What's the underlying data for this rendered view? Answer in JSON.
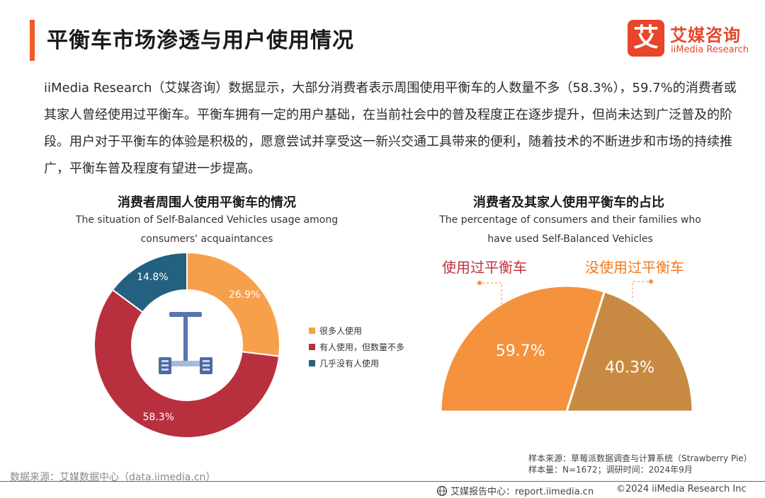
{
  "header": {
    "title": "平衡车市场渗透与用户使用情况",
    "logo_mark": "艾",
    "logo_cn": "艾媒咨询",
    "logo_en": "iiMedia Research"
  },
  "body_text": "iiMedia Research（艾媒咨询）数据显示，大部分消费者表示周围使用平衡车的人数量不多（58.3%），59.7%的消费者或其家人曾经使用过平衡车。平衡车拥有一定的用户基础，在当前社会中的普及程度正在逐步提升，但尚未达到广泛普及的阶段。用户对于平衡车的体验是积极的，愿意尝试并享受这一新兴交通工具带来的便利，随着技术的不断进步和市场的持续推广，平衡车普及程度有望进一步提高。",
  "chart_data": [
    {
      "type": "pie",
      "title": "消费者周围人使用平衡车的情况",
      "subtitle": "The situation of Self-Balanced Vehicles usage among consumers' acquaintances",
      "categories": [
        "很多人使用",
        "有人使用，但数量不多",
        "几乎没有人使用"
      ],
      "values": [
        26.9,
        58.3,
        14.8
      ],
      "data_labels": [
        "26.9%",
        "58.3%",
        "14.8%"
      ],
      "colors": [
        "#f7a04b",
        "#b8303e",
        "#24607f"
      ],
      "legend_position": "right"
    },
    {
      "type": "pie",
      "title": "消费者及其家人使用平衡车的占比",
      "subtitle": "The percentage of consumers and their families who have used Self-Balanced Vehicles",
      "categories": [
        "使用过平衡车",
        "没使用过平衡车"
      ],
      "values": [
        59.7,
        40.3
      ],
      "data_labels": [
        "59.7%",
        "40.3%"
      ],
      "colors": [
        "#f5923e",
        "#c88a42"
      ],
      "label_colors": [
        "#c0303a",
        "#f07a1e"
      ]
    }
  ],
  "footer": {
    "source_left": "数据来源：艾媒数据中心（data.iimedia.cn）",
    "sample_source": "样本来源：草莓派数据调查与计算系统（Strawberry Pie）",
    "sample_size": "样本量：N=1672；调研时间：2024年9月",
    "report_center": "艾媒报告中心：report.iimedia.cn",
    "copyright": "©2024  iiMedia Research  Inc"
  }
}
